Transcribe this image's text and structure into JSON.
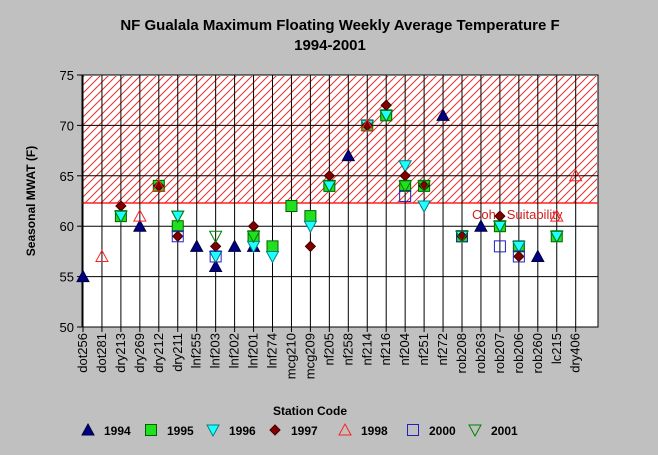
{
  "chart_data": {
    "type": "scatter",
    "title": "NF Gualala Maximum Floating Weekly Average Temperature F",
    "subtitle": "1994-2001",
    "xlabel": "Station Code",
    "ylabel": "Seasonal MWAT (F)",
    "ylim": [
      50,
      75
    ],
    "yticks": [
      50,
      55,
      60,
      65,
      70,
      75
    ],
    "grid": "horizontal",
    "legend_position": "bottom",
    "categories": [
      "dot256",
      "dot281",
      "dry213",
      "dry269",
      "dry212",
      "dry211",
      "lnf255",
      "lnf203",
      "lnf202",
      "lnf201",
      "lnf274",
      "mcg210",
      "mcg209",
      "nf205",
      "nf258",
      "nf214",
      "nf216",
      "nf204",
      "nf251",
      "nf272",
      "rob208",
      "rob263",
      "rob207",
      "rob206",
      "rob260",
      "lc215",
      "dry406"
    ],
    "threshold": {
      "y_from": 62.3,
      "y_to": 75,
      "label": "Coho Suitability",
      "color": "#d02020"
    },
    "series": [
      {
        "name": "1994",
        "marker": "triangle-up",
        "fill": "#000080",
        "stroke": "#000040",
        "points": [
          [
            "dot256",
            55
          ],
          [
            "dry269",
            60
          ],
          [
            "lnf255",
            58
          ],
          [
            "lnf203",
            56
          ],
          [
            "lnf202",
            58
          ],
          [
            "lnf201",
            58
          ],
          [
            "nf258",
            67
          ],
          [
            "nf272",
            71
          ],
          [
            "rob263",
            60
          ],
          [
            "rob260",
            57
          ]
        ]
      },
      {
        "name": "1995",
        "marker": "square",
        "fill": "#20e020",
        "stroke": "#006000",
        "points": [
          [
            "dry213",
            61
          ],
          [
            "dry212",
            64
          ],
          [
            "dry211",
            60
          ],
          [
            "lnf201",
            59
          ],
          [
            "lnf274",
            58
          ],
          [
            "mcg210",
            62
          ],
          [
            "mcg209",
            61
          ],
          [
            "nf205",
            64
          ],
          [
            "nf214",
            70
          ],
          [
            "nf216",
            71
          ],
          [
            "nf204",
            64
          ],
          [
            "nf251",
            64
          ],
          [
            "rob208",
            59
          ],
          [
            "rob207",
            60
          ],
          [
            "rob206",
            58
          ],
          [
            "lc215",
            59
          ]
        ]
      },
      {
        "name": "1996",
        "marker": "triangle-down",
        "fill": "#20ffff",
        "stroke": "#008080",
        "points": [
          [
            "dry213",
            61
          ],
          [
            "dry211",
            61
          ],
          [
            "lnf203",
            57
          ],
          [
            "lnf201",
            58
          ],
          [
            "lnf274",
            57
          ],
          [
            "mcg209",
            60
          ],
          [
            "nf205",
            64
          ],
          [
            "nf214",
            70
          ],
          [
            "nf216",
            71
          ],
          [
            "nf204",
            66
          ],
          [
            "nf251",
            62
          ],
          [
            "rob208",
            59
          ],
          [
            "rob207",
            60
          ],
          [
            "rob206",
            58
          ],
          [
            "lc215",
            59
          ]
        ]
      },
      {
        "name": "1997",
        "marker": "diamond",
        "fill": "#800000",
        "stroke": "#400000",
        "points": [
          [
            "dry213",
            62
          ],
          [
            "dry212",
            64
          ],
          [
            "dry211",
            59
          ],
          [
            "lnf203",
            58
          ],
          [
            "lnf201",
            60
          ],
          [
            "mcg209",
            58
          ],
          [
            "nf205",
            65
          ],
          [
            "nf214",
            70
          ],
          [
            "nf216",
            72
          ],
          [
            "nf204",
            65
          ],
          [
            "nf251",
            64
          ],
          [
            "rob208",
            59
          ],
          [
            "rob207",
            61
          ],
          [
            "rob206",
            57
          ]
        ]
      },
      {
        "name": "1998",
        "marker": "triangle-up-open",
        "fill": "none",
        "stroke": "#ff2020",
        "points": [
          [
            "dot281",
            57
          ],
          [
            "dry269",
            61
          ],
          [
            "dry212",
            64
          ],
          [
            "nf214",
            70
          ],
          [
            "lc215",
            61
          ],
          [
            "dry406",
            65
          ]
        ]
      },
      {
        "name": "2000",
        "marker": "square-open",
        "fill": "none",
        "stroke": "#2020c0",
        "points": [
          [
            "dry211",
            59
          ],
          [
            "lnf203",
            57
          ],
          [
            "nf204",
            63
          ],
          [
            "rob208",
            59
          ],
          [
            "rob207",
            58
          ],
          [
            "rob206",
            57
          ]
        ]
      },
      {
        "name": "2001",
        "marker": "triangle-down-open",
        "fill": "none",
        "stroke": "#008000",
        "points": [
          [
            "dry213",
            61
          ],
          [
            "dry211",
            61
          ],
          [
            "lnf203",
            59
          ],
          [
            "lnf201",
            59
          ],
          [
            "nf205",
            64
          ],
          [
            "nf216",
            71
          ],
          [
            "nf204",
            64
          ],
          [
            "nf251",
            64
          ],
          [
            "rob208",
            59
          ],
          [
            "rob207",
            60
          ],
          [
            "lc215",
            59
          ]
        ]
      }
    ]
  }
}
